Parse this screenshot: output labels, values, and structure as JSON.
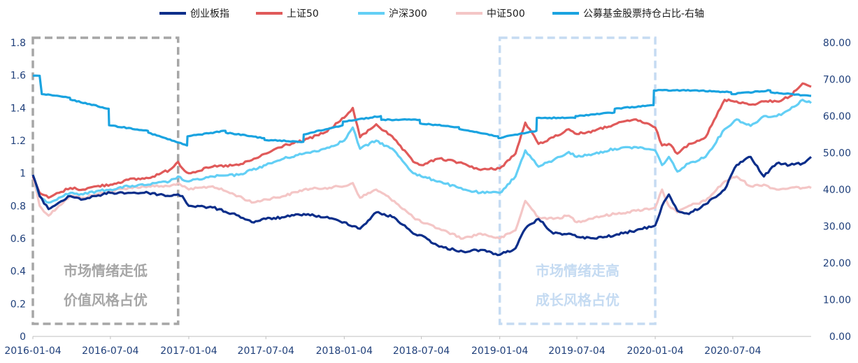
{
  "chart_data": {
    "type": "line",
    "legend": {
      "placement": "top"
    },
    "x_tick_labels": [
      "2016-01-04",
      "2016-07-04",
      "2017-01-04",
      "2017-07-04",
      "2018-01-04",
      "2018-07-04",
      "2019-01-04",
      "2019-07-04",
      "2020-01-04",
      "2020-07-04"
    ],
    "y_left": {
      "range": [
        0,
        1.8
      ],
      "ticks": [
        "0",
        "0.2",
        "0.4",
        "0.6",
        "0.8",
        "1",
        "1.2",
        "1.4",
        "1.6",
        "1.8"
      ]
    },
    "y_right": {
      "range": [
        0,
        80
      ],
      "ticks": [
        "0.00",
        "10.00",
        "20.00",
        "30.00",
        "40.00",
        "50.00",
        "60.00",
        "70.00",
        "80.00"
      ]
    },
    "grid": false,
    "series": [
      {
        "name": "创业板指",
        "axis": "left",
        "color": "#0b2e8a",
        "x": [
          "2016-01-04",
          "2016-01-20",
          "2016-02-10",
          "2016-03-05",
          "2016-04-01",
          "2016-05-01",
          "2016-06-01",
          "2016-07-04",
          "2016-08-15",
          "2016-10-01",
          "2016-11-20",
          "2016-12-10",
          "2016-12-20",
          "2017-01-04",
          "2017-03-01",
          "2017-05-01",
          "2017-06-01",
          "2017-07-04",
          "2017-08-15",
          "2017-10-01",
          "2017-11-20",
          "2018-01-04",
          "2018-02-10",
          "2018-03-20",
          "2018-05-01",
          "2018-06-15",
          "2018-07-04",
          "2018-08-15",
          "2018-10-10",
          "2018-11-20",
          "2019-01-04",
          "2019-02-10",
          "2019-03-05",
          "2019-04-05",
          "2019-05-10",
          "2019-06-15",
          "2019-07-04",
          "2019-08-15",
          "2019-10-01",
          "2019-11-20",
          "2020-01-04",
          "2020-01-20",
          "2020-02-05",
          "2020-02-25",
          "2020-03-23",
          "2020-05-01",
          "2020-06-15",
          "2020-07-13",
          "2020-08-15",
          "2020-09-15",
          "2020-10-15",
          "2020-11-15",
          "2020-12-15",
          "2021-01-04"
        ],
        "y": [
          0.99,
          0.86,
          0.78,
          0.82,
          0.86,
          0.84,
          0.86,
          0.88,
          0.88,
          0.88,
          0.86,
          0.87,
          0.86,
          0.8,
          0.79,
          0.74,
          0.7,
          0.72,
          0.73,
          0.75,
          0.73,
          0.7,
          0.66,
          0.76,
          0.73,
          0.63,
          0.62,
          0.55,
          0.52,
          0.53,
          0.5,
          0.54,
          0.66,
          0.72,
          0.63,
          0.63,
          0.61,
          0.6,
          0.62,
          0.65,
          0.68,
          0.8,
          0.87,
          0.77,
          0.75,
          0.81,
          0.9,
          1.05,
          1.1,
          0.98,
          1.06,
          1.05,
          1.06,
          1.1
        ]
      },
      {
        "name": "上证50",
        "axis": "left",
        "color": "#e05a5a",
        "x": [
          "2016-01-04",
          "2016-01-20",
          "2016-02-10",
          "2016-03-05",
          "2016-04-01",
          "2016-05-01",
          "2016-06-01",
          "2016-07-04",
          "2016-08-15",
          "2016-10-01",
          "2016-11-20",
          "2016-12-10",
          "2016-12-20",
          "2017-01-04",
          "2017-03-01",
          "2017-05-01",
          "2017-06-01",
          "2017-07-04",
          "2017-08-15",
          "2017-10-01",
          "2017-11-20",
          "2018-01-04",
          "2018-01-24",
          "2018-02-10",
          "2018-03-20",
          "2018-05-01",
          "2018-06-15",
          "2018-07-04",
          "2018-08-15",
          "2018-10-10",
          "2018-11-20",
          "2019-01-04",
          "2019-02-10",
          "2019-03-05",
          "2019-04-05",
          "2019-05-10",
          "2019-06-15",
          "2019-07-04",
          "2019-08-15",
          "2019-10-01",
          "2019-11-20",
          "2020-01-04",
          "2020-01-20",
          "2020-02-05",
          "2020-02-25",
          "2020-03-23",
          "2020-05-01",
          "2020-06-15",
          "2020-07-13",
          "2020-08-15",
          "2020-09-15",
          "2020-10-15",
          "2020-11-15",
          "2020-12-15",
          "2021-01-04"
        ],
        "y": [
          0.98,
          0.88,
          0.85,
          0.88,
          0.91,
          0.9,
          0.92,
          0.93,
          0.96,
          0.97,
          1.02,
          1.07,
          1.03,
          1.0,
          1.04,
          1.05,
          1.08,
          1.12,
          1.17,
          1.2,
          1.25,
          1.34,
          1.4,
          1.22,
          1.3,
          1.21,
          1.07,
          1.05,
          1.09,
          1.06,
          1.02,
          1.03,
          1.12,
          1.31,
          1.18,
          1.22,
          1.27,
          1.24,
          1.26,
          1.3,
          1.33,
          1.28,
          1.17,
          1.18,
          1.12,
          1.18,
          1.22,
          1.45,
          1.44,
          1.42,
          1.44,
          1.44,
          1.47,
          1.55,
          1.53
        ]
      },
      {
        "name": "沪深300",
        "axis": "left",
        "color": "#63cff5",
        "x": [
          "2016-01-04",
          "2016-01-20",
          "2016-02-10",
          "2016-03-05",
          "2016-04-01",
          "2016-05-01",
          "2016-06-01",
          "2016-07-04",
          "2016-08-15",
          "2016-10-01",
          "2016-11-20",
          "2016-12-10",
          "2016-12-20",
          "2017-01-04",
          "2017-03-01",
          "2017-05-01",
          "2017-06-01",
          "2017-07-04",
          "2017-08-15",
          "2017-10-01",
          "2017-11-20",
          "2018-01-04",
          "2018-01-24",
          "2018-02-10",
          "2018-03-20",
          "2018-05-01",
          "2018-06-15",
          "2018-07-04",
          "2018-08-15",
          "2018-10-10",
          "2018-11-20",
          "2019-01-04",
          "2019-02-10",
          "2019-03-05",
          "2019-04-05",
          "2019-05-10",
          "2019-06-15",
          "2019-07-04",
          "2019-08-15",
          "2019-10-01",
          "2019-11-20",
          "2020-01-04",
          "2020-01-20",
          "2020-02-05",
          "2020-02-25",
          "2020-03-23",
          "2020-05-01",
          "2020-06-15",
          "2020-07-13",
          "2020-08-15",
          "2020-09-15",
          "2020-10-15",
          "2020-11-15",
          "2020-12-15",
          "2021-01-04"
        ],
        "y": [
          0.99,
          0.86,
          0.82,
          0.85,
          0.88,
          0.87,
          0.89,
          0.9,
          0.92,
          0.93,
          0.95,
          0.98,
          0.96,
          0.95,
          0.98,
          0.99,
          1.02,
          1.05,
          1.09,
          1.12,
          1.15,
          1.2,
          1.28,
          1.15,
          1.2,
          1.14,
          1.0,
          0.98,
          0.95,
          0.9,
          0.88,
          0.88,
          0.98,
          1.14,
          1.04,
          1.08,
          1.13,
          1.1,
          1.12,
          1.15,
          1.16,
          1.14,
          1.05,
          1.1,
          1.01,
          1.06,
          1.1,
          1.27,
          1.33,
          1.29,
          1.35,
          1.35,
          1.39,
          1.45,
          1.43
        ]
      },
      {
        "name": "中证500",
        "axis": "left",
        "color": "#f4c6c6",
        "x": [
          "2016-01-04",
          "2016-01-20",
          "2016-02-10",
          "2016-03-05",
          "2016-04-01",
          "2016-05-01",
          "2016-06-01",
          "2016-07-04",
          "2016-08-15",
          "2016-10-01",
          "2016-11-20",
          "2016-12-10",
          "2016-12-20",
          "2017-01-04",
          "2017-03-01",
          "2017-05-01",
          "2017-06-01",
          "2017-07-04",
          "2017-08-15",
          "2017-10-01",
          "2017-11-20",
          "2018-01-04",
          "2018-01-24",
          "2018-02-10",
          "2018-03-20",
          "2018-05-01",
          "2018-06-15",
          "2018-07-04",
          "2018-08-15",
          "2018-10-10",
          "2018-11-20",
          "2019-01-04",
          "2019-02-10",
          "2019-03-05",
          "2019-04-05",
          "2019-05-10",
          "2019-06-15",
          "2019-07-04",
          "2019-08-15",
          "2019-10-01",
          "2019-11-20",
          "2020-01-04",
          "2020-01-20",
          "2020-02-05",
          "2020-02-25",
          "2020-03-23",
          "2020-05-01",
          "2020-06-15",
          "2020-07-13",
          "2020-08-15",
          "2020-09-15",
          "2020-10-15",
          "2020-11-15",
          "2020-12-15",
          "2021-01-04"
        ],
        "y": [
          0.99,
          0.8,
          0.74,
          0.8,
          0.86,
          0.85,
          0.87,
          0.89,
          0.91,
          0.92,
          0.92,
          0.94,
          0.92,
          0.9,
          0.92,
          0.86,
          0.82,
          0.84,
          0.86,
          0.9,
          0.91,
          0.92,
          0.94,
          0.85,
          0.9,
          0.83,
          0.73,
          0.7,
          0.66,
          0.6,
          0.63,
          0.6,
          0.65,
          0.83,
          0.73,
          0.72,
          0.74,
          0.7,
          0.73,
          0.75,
          0.77,
          0.79,
          0.9,
          0.8,
          0.76,
          0.8,
          0.83,
          0.95,
          0.98,
          0.92,
          0.93,
          0.9,
          0.91,
          0.91,
          0.91
        ]
      },
      {
        "name": "公募基金股票持仓占比-右轴",
        "axis": "right",
        "color": "#1aa3e0",
        "x": [
          "2016-01-04",
          "2016-01-20",
          "2016-01-25",
          "2016-03-31",
          "2016-04-01",
          "2016-06-30",
          "2016-07-01",
          "2016-09-30",
          "2016-10-01",
          "2016-12-31",
          "2017-01-01",
          "2017-03-31",
          "2017-04-01",
          "2017-06-30",
          "2017-07-01",
          "2017-09-30",
          "2017-10-01",
          "2017-12-31",
          "2018-01-01",
          "2018-03-31",
          "2018-04-01",
          "2018-06-30",
          "2018-07-01",
          "2018-09-30",
          "2018-10-01",
          "2018-12-31",
          "2019-01-01",
          "2019-03-31",
          "2019-04-01",
          "2019-06-30",
          "2019-07-01",
          "2019-09-30",
          "2019-10-01",
          "2019-12-31",
          "2020-01-01",
          "2020-03-31",
          "2020-04-01",
          "2020-06-30",
          "2020-07-01",
          "2020-09-30",
          "2020-10-01",
          "2021-01-04"
        ],
        "y": [
          71.0,
          71.0,
          66.0,
          65.0,
          64.5,
          62.0,
          57.5,
          56.0,
          55.5,
          52.0,
          54.5,
          56.0,
          55.5,
          54.0,
          53.5,
          53.0,
          55.0,
          57.5,
          58.5,
          60.0,
          59.0,
          59.0,
          58.0,
          57.0,
          56.5,
          54.5,
          54.0,
          56.0,
          59.5,
          59.5,
          60.0,
          61.0,
          62.0,
          63.0,
          67.0,
          67.0,
          67.0,
          66.5,
          66.0,
          67.0,
          66.5,
          65.5
        ]
      }
    ],
    "annotations": [
      {
        "lines": [
          "市场情绪走低",
          "价值风格占优"
        ],
        "color": "#a6a6a6",
        "x_range": [
          "2016-01-04",
          "2016-12-10"
        ]
      },
      {
        "lines": [
          "市场情绪走高",
          "成长风格占优"
        ],
        "color": "#c5dbf2",
        "x_range": [
          "2019-01-04",
          "2020-01-04"
        ]
      }
    ]
  }
}
